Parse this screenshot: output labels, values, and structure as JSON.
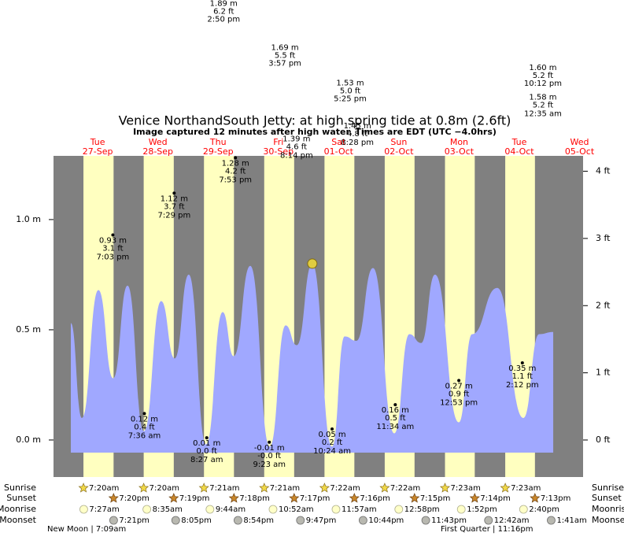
{
  "chart_data": {
    "type": "area",
    "title": "Venice NorthandSouth Jetty: at high  spring tide at 0.8m (2.6ft)",
    "subtitle": "Image captured 12 minutes after high water. Times are EDT (UTC −4.0hrs)",
    "color": "#a0a8ff",
    "x": [
      2.3,
      6.7,
      13.3,
      19.2,
      24.9,
      31.4,
      38.3,
      43.7,
      49.3,
      56.2,
      62.8,
      67.2,
      73.8,
      81.6,
      87.9,
      92.3,
      98.5,
      106.4,
      111.4,
      116.1,
      122.7,
      131.2,
      137.2,
      141.9,
      147.4,
      156.9,
      162.2,
      172.2,
      182.6,
      188.9,
      194.5
    ],
    "values": [
      0.53,
      0.1,
      0.68,
      0.28,
      0.7,
      0.04,
      0.63,
      0.37,
      0.75,
      -0.02,
      0.58,
      0.38,
      0.79,
      -0.03,
      0.52,
      0.43,
      0.8,
      -0.03,
      0.47,
      0.45,
      0.78,
      0.03,
      0.48,
      0.44,
      0.75,
      0.08,
      0.48,
      0.69,
      0.1,
      0.48,
      0.49
    ],
    "xlim": [
      -4.6,
      206.4
    ],
    "ylim": [
      -0.168,
      1.289
    ],
    "yticks": [
      {
        "value": 0,
        "label": "0.0 m"
      },
      {
        "value": 0.5,
        "label": "0.5 m"
      },
      {
        "value": 1.0,
        "label": "1.0 m"
      }
    ],
    "y2lim": [
      -0.551,
      4.229
    ],
    "y2ticks": [
      {
        "value": 0,
        "label": "0 ft"
      },
      {
        "value": 1,
        "label": "1 ft"
      },
      {
        "value": 2,
        "label": "2 ft"
      },
      {
        "value": 3,
        "label": "3 ft"
      },
      {
        "value": 4,
        "label": "4 ft"
      }
    ],
    "days": [
      {
        "name": "Tue",
        "date": "27-Sep"
      },
      {
        "name": "Wed",
        "date": "28-Sep"
      },
      {
        "name": "Thu",
        "date": "29-Sep"
      },
      {
        "name": "Fri",
        "date": "30-Sep"
      },
      {
        "name": "Sat",
        "date": "01-Oct"
      },
      {
        "name": "Sun",
        "date": "02-Oct"
      },
      {
        "name": "Mon",
        "date": "03-Oct"
      },
      {
        "name": "Tue",
        "date": "04-Oct"
      },
      {
        "name": "Wed",
        "date": "05-Oct"
      }
    ],
    "now": {
      "x": 98.5,
      "value": 0.8
    },
    "extremes": {
      "x": [
        19.05,
        31.6,
        43.48,
        56.45,
        63.2,
        67.88,
        81.38,
        87.6,
        92.23,
        106.4,
        113.6,
        116.47,
        131.57,
        156.9,
        182.2,
        190.4,
        190.4
      ],
      "values": [
        0.93,
        0.12,
        1.12,
        0.01,
        1.89,
        1.28,
        -0.01,
        1.69,
        1.39,
        0.05,
        1.53,
        1.45,
        0.16,
        0.27,
        0.35,
        1.6,
        1.58
      ],
      "value_labels": [
        "0.93 m",
        "0.12 m",
        "1.12 m",
        "0.01 m",
        "1.89 m",
        "1.28 m",
        "-0.01 m",
        "1.69 m",
        "1.39 m",
        "0.05 m",
        "1.53 m",
        "1.45 m",
        "0.16 m",
        "0.27 m",
        "0.35 m",
        "1.60 m",
        "1.58 m"
      ],
      "ft_labels": [
        "3.1 ft",
        "0.4 ft",
        "3.7 ft",
        "0.0 ft",
        "6.2 ft",
        "4.2 ft",
        "-0.0 ft",
        "5.5 ft",
        "4.6 ft",
        "0.2 ft",
        "5.0 ft",
        "4.8 ft",
        "0.5 ft",
        "0.9 ft",
        "1.1 ft",
        "5.2 ft",
        "5.2 ft"
      ],
      "times": [
        "7:03 pm",
        "7:36 am",
        "7:29 pm",
        "8:27 am",
        "2:50 pm",
        "7:53 pm",
        "9:23 am",
        "3:57 pm",
        "8:14 pm",
        "10:24 am",
        "5:25 pm",
        "8:28 pm",
        "11:34 am",
        "12:53 pm",
        "2:12 pm",
        "10:12 pm",
        "12:35 am"
      ]
    }
  },
  "almanac": {
    "rows": [
      {
        "label": "Sunrise",
        "times": [
          "7:20am",
          "7:20am",
          "7:21am",
          "7:21am",
          "7:22am",
          "7:22am",
          "7:23am",
          "7:23am"
        ]
      },
      {
        "label": "Sunset",
        "times": [
          "7:20pm",
          "7:19pm",
          "7:18pm",
          "7:17pm",
          "7:16pm",
          "7:15pm",
          "7:14pm",
          "7:13pm"
        ]
      },
      {
        "label": "Moonrise",
        "times": [
          "7:27am",
          "8:35am",
          "9:44am",
          "10:52am",
          "11:57am",
          "12:58pm",
          "1:52pm",
          "2:40pm"
        ]
      },
      {
        "label": "Moonset",
        "times": [
          "7:21pm",
          "8:05pm",
          "8:54pm",
          "9:47pm",
          "10:44pm",
          "11:43pm",
          "12:42am",
          "1:41am"
        ]
      }
    ],
    "notes": [
      "New Moon | 7:09am",
      "First Quarter | 11:16pm"
    ]
  }
}
